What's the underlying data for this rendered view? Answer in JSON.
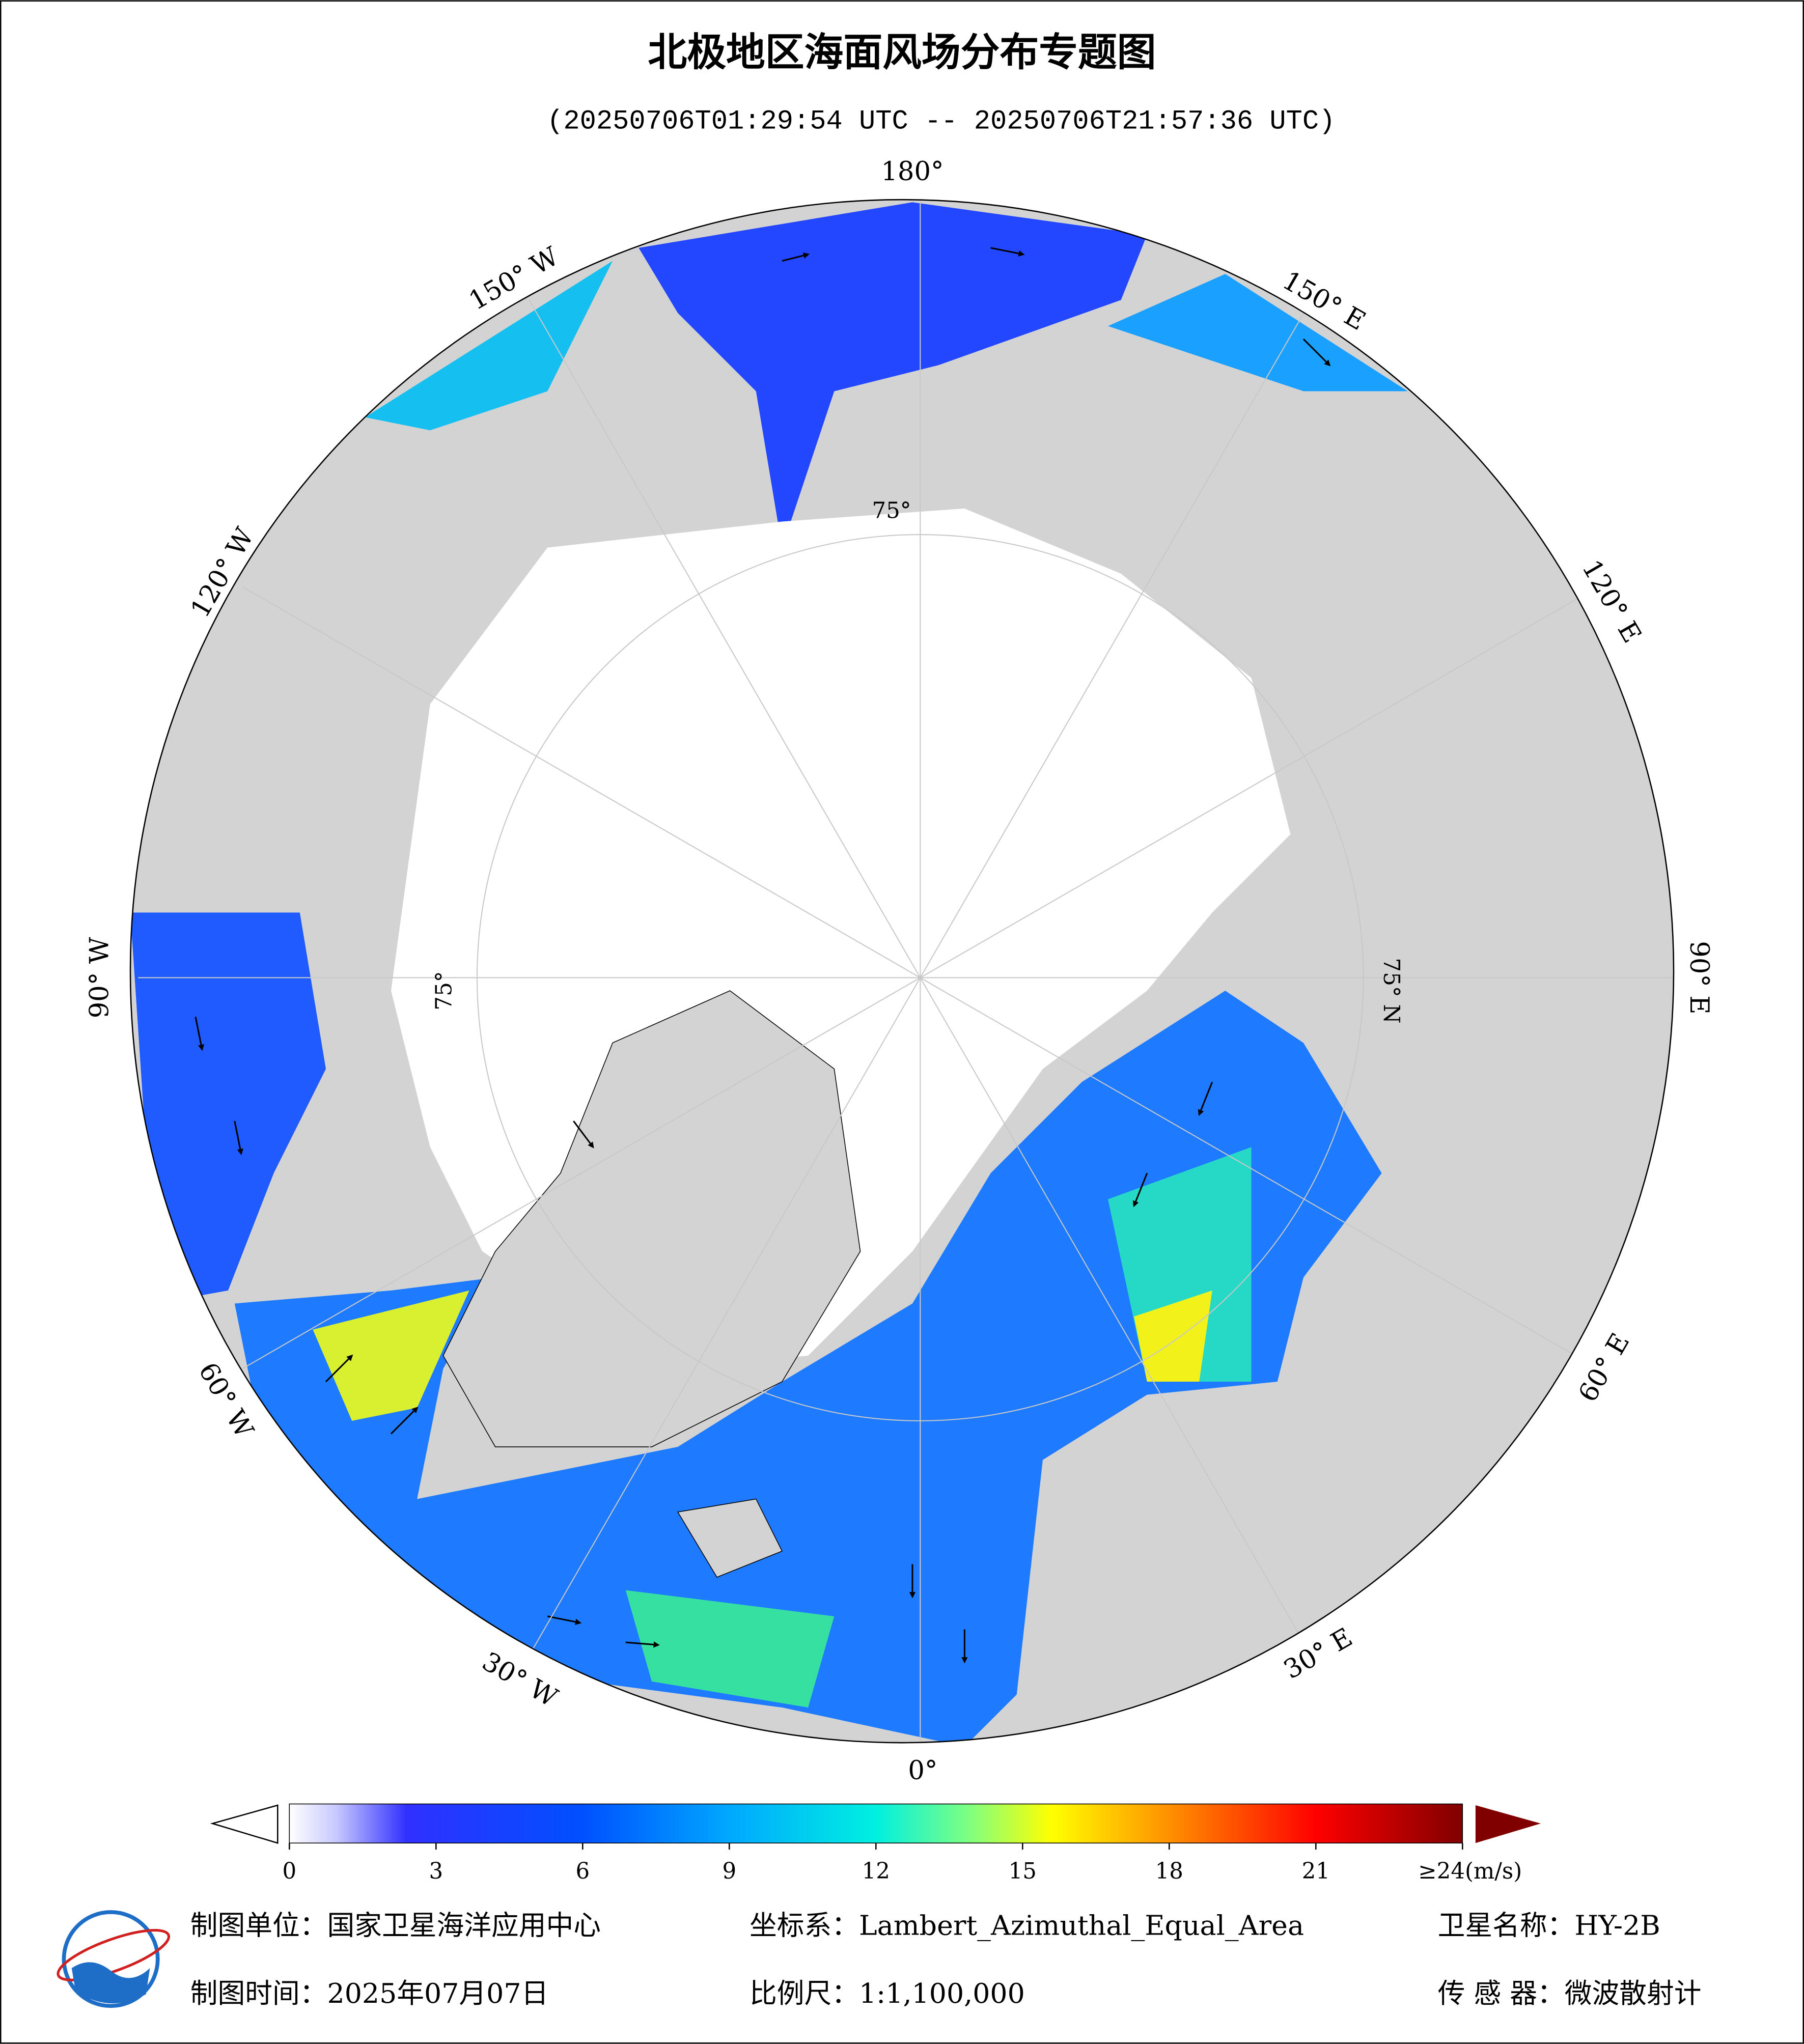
{
  "title": "北极地区海面风场分布专题图",
  "subtitle": "(20250706T01:29:54 UTC -- 20250706T21:57:36 UTC)",
  "map": {
    "meridian_labels": [
      "180°",
      "150° W",
      "120° W",
      "90° W",
      "60° W",
      "30° W",
      "0°",
      "30° E",
      "60° E",
      "90° E",
      "120° E",
      "150° E"
    ],
    "latitude_labels": [
      "75°",
      "75°",
      "75° N"
    ]
  },
  "colorbar": {
    "range": [
      0,
      24
    ],
    "ticks": [
      0,
      3,
      6,
      9,
      12,
      15,
      18,
      21,
      {
        "value": 24,
        "label": "≥24(m/s)"
      }
    ]
  },
  "footer": {
    "unit": "制图单位：国家卫星海洋应用中心",
    "crs": "坐标系：Lambert_Azimuthal_Equal_Area",
    "satellite": "卫星名称：HY-2B",
    "date": "制图时间：2025年07月07日",
    "scale": "比例尺：1:1,100,000",
    "sensor": "传 感 器：微波散射计"
  }
}
